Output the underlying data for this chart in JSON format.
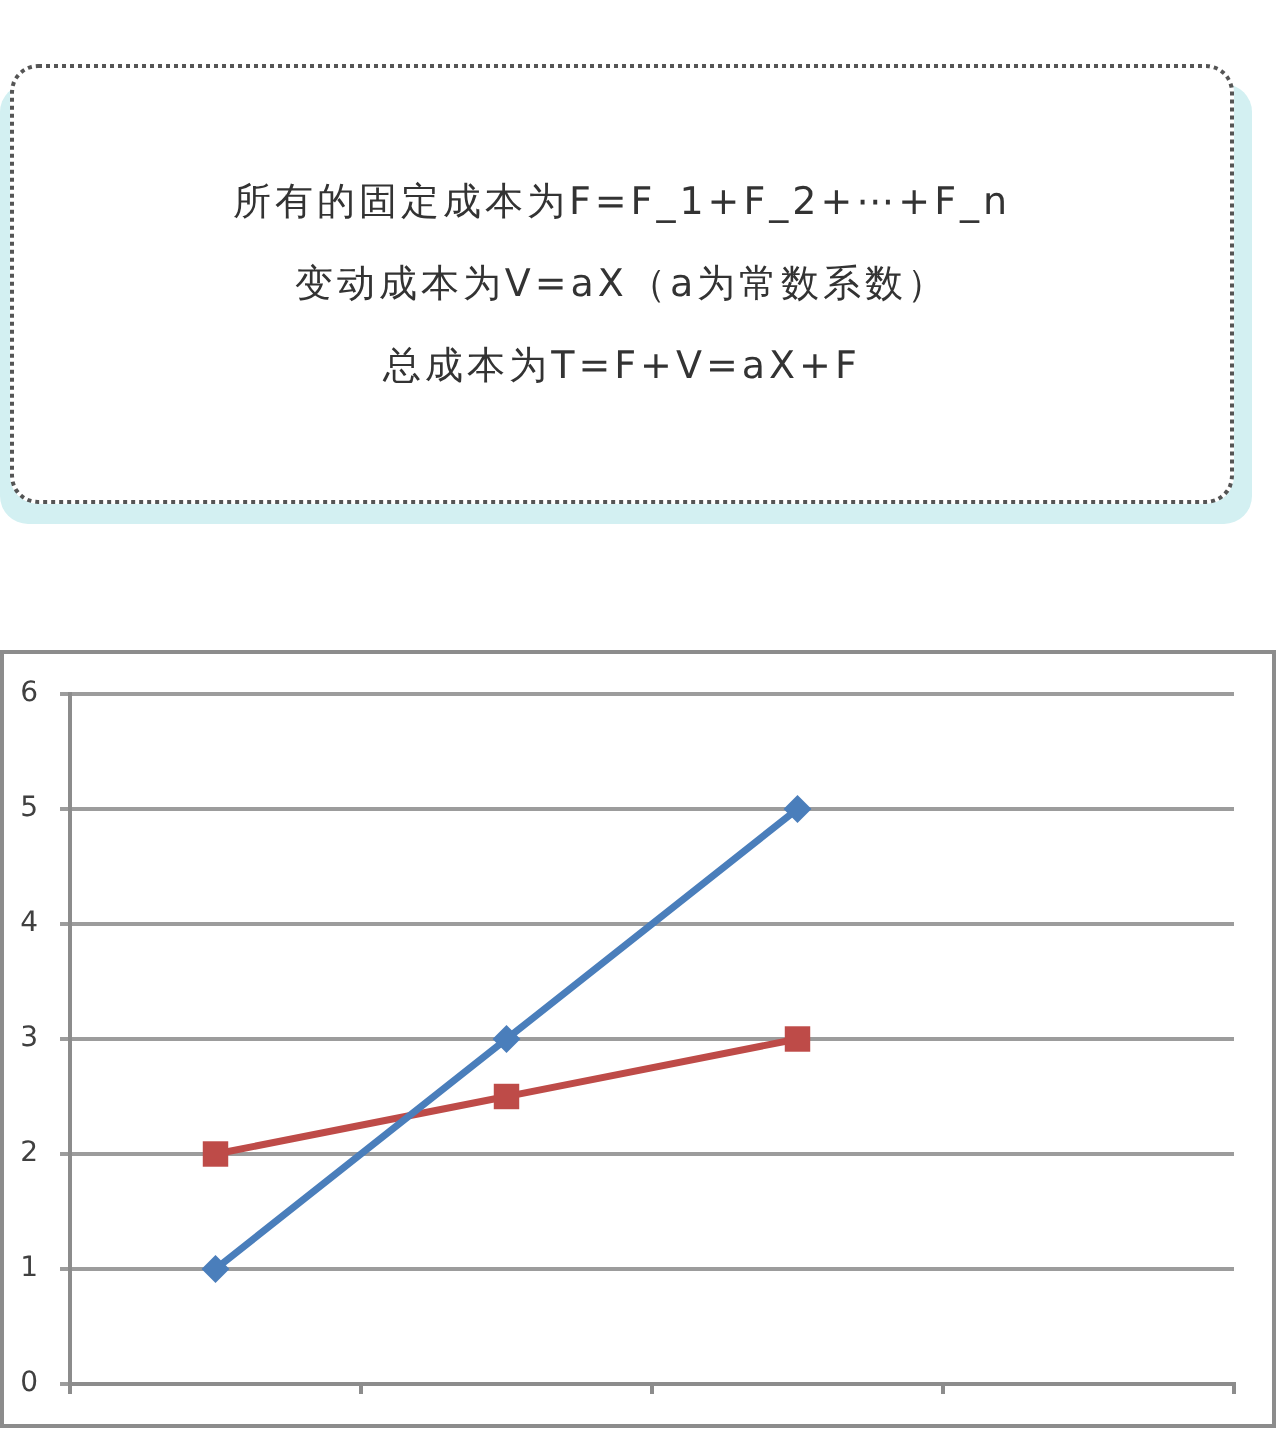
{
  "chart_data": [
    {
      "type": "other",
      "annotations": [
        "所有的固定成本为F=F_1+F_2+⋯+F_n",
        "变动成本为V=aX（a为常数系数）",
        "总成本为T=F+V=aX+F"
      ]
    },
    {
      "type": "line",
      "categories": [
        null,
        null,
        null,
        null
      ],
      "series": [
        {
          "color": "#4a7ebb",
          "marker": "diamond",
          "values": [
            1,
            3,
            5,
            null
          ]
        },
        {
          "color": "#be4b48",
          "marker": "square",
          "values": [
            2,
            2.5,
            3,
            null
          ]
        }
      ],
      "ylim": [
        0,
        6
      ],
      "yticks": [
        0,
        1,
        2,
        3,
        4,
        5,
        6
      ],
      "grid": "y",
      "tick_labels": "y",
      "line_style": "solid"
    }
  ]
}
